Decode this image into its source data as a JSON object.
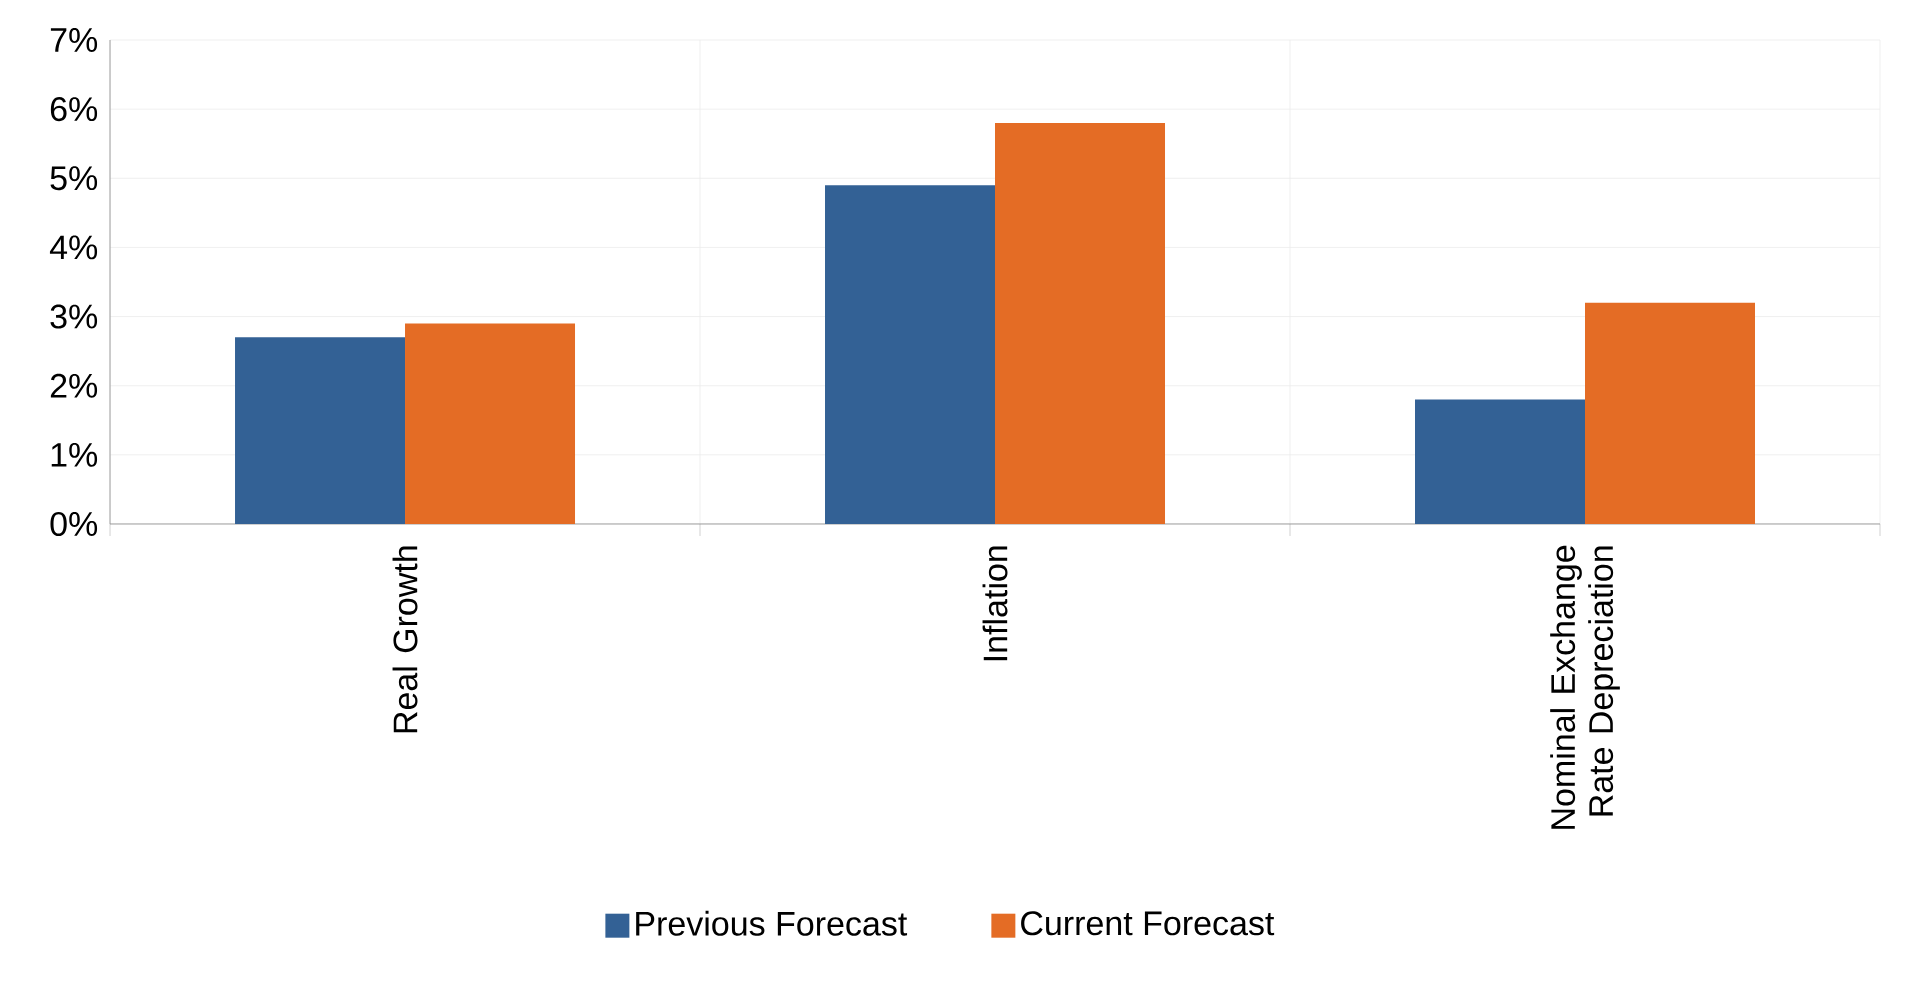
{
  "chart_data": {
    "type": "bar",
    "categories": [
      "Real Growth",
      "Inflation",
      "Nominal Exchange Rate Depreciation"
    ],
    "series": [
      {
        "name": "Previous Forecast",
        "color": "#336195",
        "values": [
          2.7,
          4.9,
          1.8
        ]
      },
      {
        "name": "Current Forecast",
        "color": "#e46c25",
        "values": [
          2.9,
          5.8,
          3.2
        ]
      }
    ],
    "ylim": [
      0,
      7
    ],
    "yticks": [
      {
        "value": 0,
        "label": "0%"
      },
      {
        "value": 1,
        "label": "1%"
      },
      {
        "value": 2,
        "label": "2%"
      },
      {
        "value": 3,
        "label": "3%"
      },
      {
        "value": 4,
        "label": "4%"
      },
      {
        "value": 5,
        "label": "5%"
      },
      {
        "value": 6,
        "label": "6%"
      },
      {
        "value": 7,
        "label": "7%"
      }
    ],
    "grid": true,
    "legend": "bottom"
  }
}
